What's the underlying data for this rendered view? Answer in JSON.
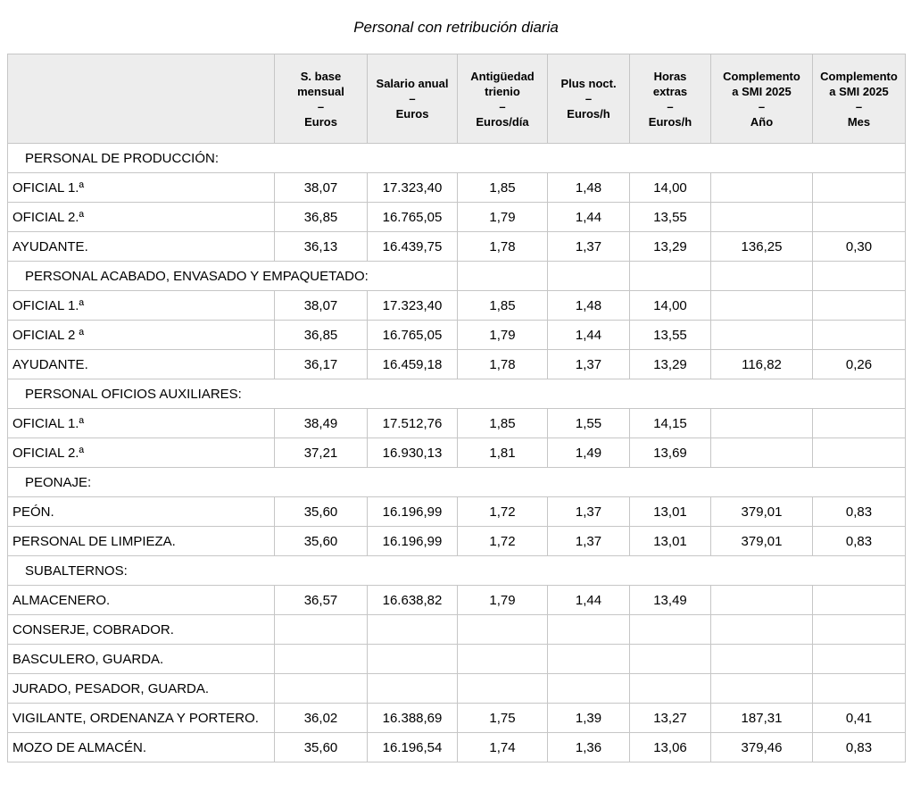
{
  "title": "Personal con retribución diaria",
  "colors": {
    "page_bg": "#ffffff",
    "text": "#000000",
    "border": "#c6c6c6",
    "header_bg": "#ededed"
  },
  "table": {
    "header": {
      "corner": "",
      "dash": "–",
      "columns": [
        {
          "title_lines": [
            "S. base",
            "mensual"
          ],
          "unit": "Euros"
        },
        {
          "title_lines": [
            "Salario anual"
          ],
          "unit": "Euros"
        },
        {
          "title_lines": [
            "Antigüedad",
            "trienio"
          ],
          "unit": "Euros/día"
        },
        {
          "title_lines": [
            "Plus noct."
          ],
          "unit": "Euros/h"
        },
        {
          "title_lines": [
            "Horas",
            "extras"
          ],
          "unit": "Euros/h"
        },
        {
          "title_lines": [
            "Complemento",
            "a SMI 2025"
          ],
          "unit": "Año"
        },
        {
          "title_lines": [
            "Complemento",
            "a SMI 2025"
          ],
          "unit": "Mes"
        }
      ]
    },
    "rows": [
      {
        "kind": "section-full",
        "label": "PERSONAL DE PRODUCCIÓN:"
      },
      {
        "kind": "data",
        "label": "OFICIAL 1.ª",
        "values": [
          "38,07",
          "17.323,40",
          "1,85",
          "1,48",
          "14,00",
          "",
          ""
        ]
      },
      {
        "kind": "data",
        "label": "OFICIAL 2.ª",
        "values": [
          "36,85",
          "16.765,05",
          "1,79",
          "1,44",
          "13,55",
          "",
          ""
        ]
      },
      {
        "kind": "data",
        "label": "AYUDANTE.",
        "values": [
          "36,13",
          "16.439,75",
          "1,78",
          "1,37",
          "13,29",
          "136,25",
          "0,30"
        ]
      },
      {
        "kind": "section-span3",
        "label": "PERSONAL ACABADO, ENVASADO Y EMPAQUETADO:"
      },
      {
        "kind": "data",
        "label": "OFICIAL 1.ª",
        "values": [
          "38,07",
          "17.323,40",
          "1,85",
          "1,48",
          "14,00",
          "",
          ""
        ]
      },
      {
        "kind": "data",
        "label": "OFICIAL 2 ª",
        "values": [
          "36,85",
          "16.765,05",
          "1,79",
          "1,44",
          "13,55",
          "",
          ""
        ]
      },
      {
        "kind": "data",
        "label": "AYUDANTE.",
        "values": [
          "36,17",
          "16.459,18",
          "1,78",
          "1,37",
          "13,29",
          "116,82",
          "0,26"
        ]
      },
      {
        "kind": "section-full",
        "label": "PERSONAL OFICIOS AUXILIARES:"
      },
      {
        "kind": "data",
        "label": "OFICIAL 1.ª",
        "values": [
          "38,49",
          "17.512,76",
          "1,85",
          "1,55",
          "14,15",
          "",
          ""
        ]
      },
      {
        "kind": "data",
        "label": "OFICIAL 2.ª",
        "values": [
          "37,21",
          "16.930,13",
          "1,81",
          "1,49",
          "13,69",
          "",
          ""
        ]
      },
      {
        "kind": "section-full",
        "label": "PEONAJE:"
      },
      {
        "kind": "data",
        "label": "PEÓN.",
        "values": [
          "35,60",
          "16.196,99",
          "1,72",
          "1,37",
          "13,01",
          "379,01",
          "0,83"
        ]
      },
      {
        "kind": "data",
        "label": "PERSONAL DE LIMPIEZA.",
        "values": [
          "35,60",
          "16.196,99",
          "1,72",
          "1,37",
          "13,01",
          "379,01",
          "0,83"
        ]
      },
      {
        "kind": "section-full",
        "label": "SUBALTERNOS:"
      },
      {
        "kind": "data",
        "label": "ALMACENERO.",
        "values": [
          "36,57",
          "16.638,82",
          "1,79",
          "1,44",
          "13,49",
          "",
          ""
        ]
      },
      {
        "kind": "data",
        "label": "CONSERJE, COBRADOR.",
        "values": [
          "",
          "",
          "",
          "",
          "",
          "",
          ""
        ]
      },
      {
        "kind": "data",
        "label": "BASCULERO, GUARDA.",
        "values": [
          "",
          "",
          "",
          "",
          "",
          "",
          ""
        ]
      },
      {
        "kind": "data",
        "label": "JURADO, PESADOR, GUARDA.",
        "values": [
          "",
          "",
          "",
          "",
          "",
          "",
          ""
        ]
      },
      {
        "kind": "data",
        "label": "VIGILANTE, ORDENANZA Y PORTERO.",
        "values": [
          "36,02",
          "16.388,69",
          "1,75",
          "1,39",
          "13,27",
          "187,31",
          "0,41"
        ]
      },
      {
        "kind": "data",
        "label": "MOZO DE ALMACÉN.",
        "values": [
          "35,60",
          "16.196,54",
          "1,74",
          "1,36",
          "13,06",
          "379,46",
          "0,83"
        ]
      }
    ]
  }
}
